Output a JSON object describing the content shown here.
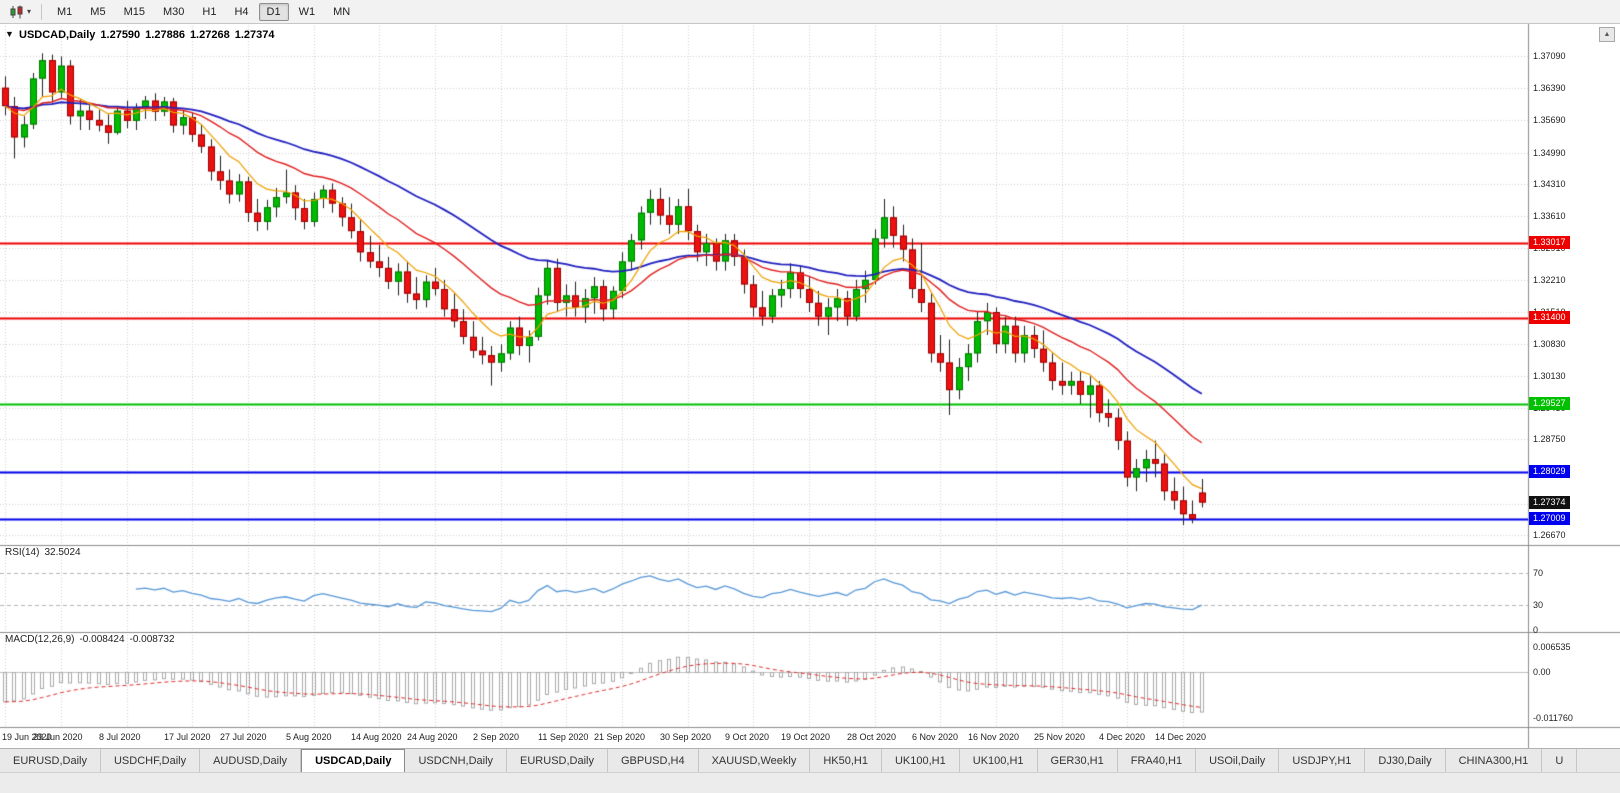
{
  "toolbar": {
    "timeframes": [
      "M1",
      "M5",
      "M15",
      "M30",
      "H1",
      "H4",
      "D1",
      "W1",
      "MN"
    ],
    "active_timeframe": "D1"
  },
  "chart_header": {
    "collapse_icon": "▼",
    "symbol": "USDCAD,Daily",
    "open": "1.27590",
    "high": "1.27886",
    "low": "1.27268",
    "close": "1.27374"
  },
  "scroll_up_icon": "▲",
  "price_axis": {
    "labels": [
      "1.37090",
      "1.36390",
      "1.35690",
      "1.34990",
      "1.34310",
      "1.33610",
      "1.32910",
      "1.32210",
      "1.31510",
      "1.30830",
      "1.30130",
      "1.29430",
      "1.28750",
      "1.28050",
      "1.27350",
      "1.26670"
    ],
    "tags": [
      {
        "text": "1.33017",
        "price": 1.33017,
        "color": "#ee0000",
        "text_color": "#ffffff"
      },
      {
        "text": "1.31400",
        "price": 1.314,
        "color": "#ee0000",
        "text_color": "#ffffff"
      },
      {
        "text": "1.29527",
        "price": 1.29527,
        "color": "#00c000",
        "text_color": "#ffffff"
      },
      {
        "text": "1.28029",
        "price": 1.28029,
        "color": "#0000ee",
        "text_color": "#ffffff"
      },
      {
        "text": "1.27374",
        "price": 1.27374,
        "color": "#111111",
        "text_color": "#ffffff"
      },
      {
        "text": "1.27009",
        "price": 1.27009,
        "color": "#0000ee",
        "text_color": "#ffffff"
      }
    ]
  },
  "rsi_panel": {
    "label": "RSI(14)",
    "value": "32.5024",
    "axis_labels": [
      "70",
      "30",
      "0"
    ]
  },
  "macd_panel": {
    "label": "MACD(12,26,9)",
    "value_main": "-0.008424",
    "value_signal": "-0.008732",
    "axis_labels": [
      "0.006535",
      "0.00",
      "-0.011760"
    ]
  },
  "date_axis": [
    "19 Jun 2020",
    "29 Jun 2020",
    "8 Jul 2020",
    "17 Jul 2020",
    "27 Jul 2020",
    "5 Aug 2020",
    "14 Aug 2020",
    "24 Aug 2020",
    "2 Sep 2020",
    "11 Sep 2020",
    "21 Sep 2020",
    "30 Sep 2020",
    "9 Oct 2020",
    "19 Oct 2020",
    "28 Oct 2020",
    "6 Nov 2020",
    "16 Nov 2020",
    "25 Nov 2020",
    "4 Dec 2020",
    "14 Dec 2020"
  ],
  "tabs": {
    "items": [
      {
        "label": "EURUSD,Daily"
      },
      {
        "label": "USDCHF,Daily"
      },
      {
        "label": "AUDUSD,Daily"
      },
      {
        "label": "USDCAD,Daily",
        "active": true
      },
      {
        "label": "USDCNH,Daily"
      },
      {
        "label": "EURUSD,Daily"
      },
      {
        "label": "GBPUSD,H4"
      },
      {
        "label": "XAUUSD,Weekly"
      },
      {
        "label": "HK50,H1"
      },
      {
        "label": "UK100,H1"
      },
      {
        "label": "UK100,H1"
      },
      {
        "label": "GER30,H1"
      },
      {
        "label": "FRA40,H1"
      },
      {
        "label": "USOil,Daily"
      },
      {
        "label": "USDJPY,H1"
      },
      {
        "label": "DJ30,Daily"
      },
      {
        "label": "CHINA300,H1"
      },
      {
        "label": "U"
      }
    ]
  },
  "chart_data": {
    "type": "candlestick",
    "symbol": "USDCAD",
    "timeframe": "Daily",
    "y_range": [
      1.2645,
      1.377
    ],
    "tick_indices": [
      0,
      6,
      13,
      20,
      26,
      33,
      40,
      46,
      53,
      60,
      66,
      73,
      80,
      86,
      93,
      100,
      106,
      113,
      120,
      126
    ],
    "ohlc": [
      [
        1.364,
        1.3665,
        1.358,
        1.36
      ],
      [
        1.36,
        1.362,
        1.3486,
        1.3532
      ],
      [
        1.3532,
        1.3578,
        1.351,
        1.356
      ],
      [
        1.356,
        1.3672,
        1.355,
        1.366
      ],
      [
        1.366,
        1.3715,
        1.362,
        1.37
      ],
      [
        1.37,
        1.3712,
        1.3608,
        1.363
      ],
      [
        1.363,
        1.3708,
        1.3618,
        1.3688
      ],
      [
        1.3688,
        1.37,
        1.356,
        1.3578
      ],
      [
        1.3578,
        1.3615,
        1.3548,
        1.359
      ],
      [
        1.359,
        1.3602,
        1.3548,
        1.357
      ],
      [
        1.357,
        1.3592,
        1.3545,
        1.3558
      ],
      [
        1.3558,
        1.3582,
        1.3518,
        1.3542
      ],
      [
        1.3542,
        1.3598,
        1.3538,
        1.359
      ],
      [
        1.359,
        1.3612,
        1.3552,
        1.3568
      ],
      [
        1.3568,
        1.3606,
        1.3548,
        1.3598
      ],
      [
        1.3598,
        1.3622,
        1.3572,
        1.3612
      ],
      [
        1.3612,
        1.3628,
        1.3568,
        1.3588
      ],
      [
        1.3588,
        1.362,
        1.3578,
        1.361
      ],
      [
        1.361,
        1.3618,
        1.3542,
        1.3558
      ],
      [
        1.3558,
        1.3592,
        1.3538,
        1.3576
      ],
      [
        1.3576,
        1.3586,
        1.3522,
        1.3538
      ],
      [
        1.3538,
        1.356,
        1.3498,
        1.3512
      ],
      [
        1.3512,
        1.3528,
        1.3438,
        1.3458
      ],
      [
        1.3458,
        1.3492,
        1.3418,
        1.3438
      ],
      [
        1.3438,
        1.3462,
        1.3388,
        1.3408
      ],
      [
        1.3408,
        1.3452,
        1.3392,
        1.3436
      ],
      [
        1.3436,
        1.3446,
        1.3348,
        1.3368
      ],
      [
        1.3368,
        1.3398,
        1.3328,
        1.3348
      ],
      [
        1.3348,
        1.3396,
        1.333,
        1.338
      ],
      [
        1.338,
        1.3422,
        1.3358,
        1.3402
      ],
      [
        1.3402,
        1.3462,
        1.3388,
        1.3412
      ],
      [
        1.3412,
        1.3428,
        1.3352,
        1.3378
      ],
      [
        1.3378,
        1.3398,
        1.3332,
        1.3348
      ],
      [
        1.3348,
        1.3412,
        1.3338,
        1.3398
      ],
      [
        1.3398,
        1.3428,
        1.3378,
        1.3418
      ],
      [
        1.3418,
        1.3432,
        1.3368,
        1.3388
      ],
      [
        1.3388,
        1.3402,
        1.3338,
        1.3358
      ],
      [
        1.3358,
        1.3388,
        1.3312,
        1.3328
      ],
      [
        1.3328,
        1.3352,
        1.3262,
        1.3282
      ],
      [
        1.3282,
        1.3318,
        1.3248,
        1.3262
      ],
      [
        1.3262,
        1.3298,
        1.3228,
        1.3248
      ],
      [
        1.3248,
        1.3272,
        1.3202,
        1.3218
      ],
      [
        1.3218,
        1.3258,
        1.3188,
        1.324
      ],
      [
        1.324,
        1.3262,
        1.3172,
        1.3192
      ],
      [
        1.3192,
        1.3228,
        1.3158,
        1.3178
      ],
      [
        1.3178,
        1.3232,
        1.3162,
        1.3218
      ],
      [
        1.3218,
        1.3248,
        1.3188,
        1.3202
      ],
      [
        1.3202,
        1.3222,
        1.3142,
        1.3158
      ],
      [
        1.3158,
        1.3192,
        1.3118,
        1.3132
      ],
      [
        1.3132,
        1.3158,
        1.3082,
        1.3098
      ],
      [
        1.3098,
        1.3132,
        1.3052,
        1.3068
      ],
      [
        1.3068,
        1.3098,
        1.3038,
        1.3058
      ],
      [
        1.3058,
        1.3078,
        1.2992,
        1.3042
      ],
      [
        1.3042,
        1.3082,
        1.3022,
        1.3062
      ],
      [
        1.3062,
        1.3132,
        1.3048,
        1.3118
      ],
      [
        1.3118,
        1.3142,
        1.3058,
        1.3078
      ],
      [
        1.3078,
        1.3112,
        1.3042,
        1.3098
      ],
      [
        1.3098,
        1.3205,
        1.309,
        1.3188
      ],
      [
        1.3188,
        1.3265,
        1.3168,
        1.3248
      ],
      [
        1.3248,
        1.3268,
        1.3152,
        1.3172
      ],
      [
        1.3172,
        1.3212,
        1.3142,
        1.3188
      ],
      [
        1.3188,
        1.3218,
        1.3142,
        1.3162
      ],
      [
        1.3162,
        1.3202,
        1.3128,
        1.3182
      ],
      [
        1.3182,
        1.3228,
        1.3148,
        1.3208
      ],
      [
        1.3208,
        1.3222,
        1.3132,
        1.3158
      ],
      [
        1.3158,
        1.3208,
        1.3138,
        1.3198
      ],
      [
        1.3198,
        1.3282,
        1.3182,
        1.3262
      ],
      [
        1.3262,
        1.3322,
        1.3242,
        1.3308
      ],
      [
        1.3308,
        1.3382,
        1.3288,
        1.3368
      ],
      [
        1.3368,
        1.3418,
        1.3342,
        1.3398
      ],
      [
        1.3398,
        1.3422,
        1.3342,
        1.3362
      ],
      [
        1.3362,
        1.3402,
        1.3322,
        1.3342
      ],
      [
        1.3342,
        1.3398,
        1.3322,
        1.3382
      ],
      [
        1.3382,
        1.342,
        1.3308,
        1.3328
      ],
      [
        1.3328,
        1.3342,
        1.3262,
        1.3282
      ],
      [
        1.3282,
        1.3322,
        1.3252,
        1.3302
      ],
      [
        1.3302,
        1.3312,
        1.3242,
        1.3262
      ],
      [
        1.3262,
        1.3322,
        1.3242,
        1.3308
      ],
      [
        1.3308,
        1.3322,
        1.3252,
        1.3272
      ],
      [
        1.3272,
        1.3288,
        1.3192,
        1.3212
      ],
      [
        1.3212,
        1.3232,
        1.3142,
        1.3162
      ],
      [
        1.3162,
        1.3198,
        1.3122,
        1.3142
      ],
      [
        1.3142,
        1.3202,
        1.3128,
        1.3188
      ],
      [
        1.3188,
        1.3222,
        1.3162,
        1.3202
      ],
      [
        1.3202,
        1.3258,
        1.3182,
        1.3238
      ],
      [
        1.3238,
        1.3252,
        1.3182,
        1.3202
      ],
      [
        1.3202,
        1.3228,
        1.3152,
        1.3172
      ],
      [
        1.3172,
        1.3198,
        1.3122,
        1.3142
      ],
      [
        1.3142,
        1.3182,
        1.3102,
        1.3162
      ],
      [
        1.3162,
        1.3202,
        1.3132,
        1.3182
      ],
      [
        1.3182,
        1.3198,
        1.3122,
        1.3142
      ],
      [
        1.3142,
        1.3222,
        1.3132,
        1.3202
      ],
      [
        1.3202,
        1.3242,
        1.3172,
        1.3222
      ],
      [
        1.3222,
        1.3332,
        1.3212,
        1.3312
      ],
      [
        1.3312,
        1.3398,
        1.3292,
        1.3358
      ],
      [
        1.3358,
        1.3382,
        1.3292,
        1.3318
      ],
      [
        1.3318,
        1.3342,
        1.3262,
        1.3288
      ],
      [
        1.3288,
        1.3312,
        1.3182,
        1.3202
      ],
      [
        1.3202,
        1.3302,
        1.3152,
        1.3172
      ],
      [
        1.3172,
        1.3192,
        1.3042,
        1.3062
      ],
      [
        1.3062,
        1.3102,
        1.3022,
        1.3042
      ],
      [
        1.3042,
        1.3092,
        1.2928,
        1.2982
      ],
      [
        1.2982,
        1.3052,
        1.2962,
        1.3032
      ],
      [
        1.3032,
        1.3082,
        1.3002,
        1.3062
      ],
      [
        1.3062,
        1.3152,
        1.3042,
        1.3132
      ],
      [
        1.3132,
        1.3172,
        1.3102,
        1.3152
      ],
      [
        1.3152,
        1.3162,
        1.3062,
        1.3082
      ],
      [
        1.3082,
        1.3142,
        1.3062,
        1.3122
      ],
      [
        1.3122,
        1.3142,
        1.3042,
        1.3062
      ],
      [
        1.3062,
        1.3122,
        1.3042,
        1.3102
      ],
      [
        1.3102,
        1.3122,
        1.3052,
        1.3072
      ],
      [
        1.3072,
        1.3112,
        1.3022,
        1.3042
      ],
      [
        1.3042,
        1.3062,
        1.2982,
        1.3002
      ],
      [
        1.3002,
        1.3042,
        1.2972,
        1.2992
      ],
      [
        1.2992,
        1.3022,
        1.2972,
        1.3002
      ],
      [
        1.3002,
        1.3022,
        1.2952,
        1.2972
      ],
      [
        1.2972,
        1.3012,
        1.2922,
        1.2992
      ],
      [
        1.2992,
        1.3002,
        1.2912,
        1.2932
      ],
      [
        1.2932,
        1.2962,
        1.2902,
        1.2922
      ],
      [
        1.2922,
        1.2942,
        1.2852,
        1.2872
      ],
      [
        1.2872,
        1.2892,
        1.2772,
        1.2792
      ],
      [
        1.2792,
        1.2832,
        1.2762,
        1.2812
      ],
      [
        1.2812,
        1.2852,
        1.2782,
        1.2832
      ],
      [
        1.2832,
        1.2872,
        1.2792,
        1.2822
      ],
      [
        1.2822,
        1.2842,
        1.2742,
        1.2762
      ],
      [
        1.2762,
        1.2792,
        1.2722,
        1.2742
      ],
      [
        1.2742,
        1.2772,
        1.2688,
        1.2712
      ],
      [
        1.2712,
        1.2742,
        1.2692,
        1.2702
      ],
      [
        1.2759,
        1.27886,
        1.27268,
        1.27374
      ]
    ],
    "hlines": [
      {
        "price": 1.33017,
        "color": "#ee0000",
        "width": 2
      },
      {
        "price": 1.314,
        "color": "#ee0000",
        "width": 2
      },
      {
        "price": 1.29527,
        "color": "#00c000",
        "width": 2
      },
      {
        "price": 1.28029,
        "color": "#0000ee",
        "width": 2
      },
      {
        "price": 1.27009,
        "color": "#0000ee",
        "width": 2
      }
    ],
    "moving_averages": [
      {
        "type": "ema",
        "period": 40,
        "color": "#2020c0",
        "width": 1.8
      },
      {
        "type": "ema",
        "period": 20,
        "color": "#e02020",
        "width": 1.4
      },
      {
        "type": "ema",
        "period": 8,
        "color": "#f0a000",
        "width": 1.2
      }
    ],
    "rsi": {
      "period": 14,
      "levels": [
        70,
        30
      ],
      "range": [
        0,
        100
      ],
      "color": "#5898d8",
      "last": 32.5024
    },
    "macd": {
      "fast": 12,
      "slow": 26,
      "signal_period": 9,
      "range": [
        -0.0135,
        0.0095
      ],
      "histogram_color": "#aaaaaa",
      "signal_color": "#e03030",
      "last_main": -0.008424,
      "last_signal": -0.008732
    },
    "colors": {
      "up": "#00bb00",
      "up_border": "#007700",
      "down": "#ee1111",
      "down_border": "#990000",
      "wick": "#222222",
      "grid": "#d4d4d4",
      "background": "#ffffff"
    }
  }
}
